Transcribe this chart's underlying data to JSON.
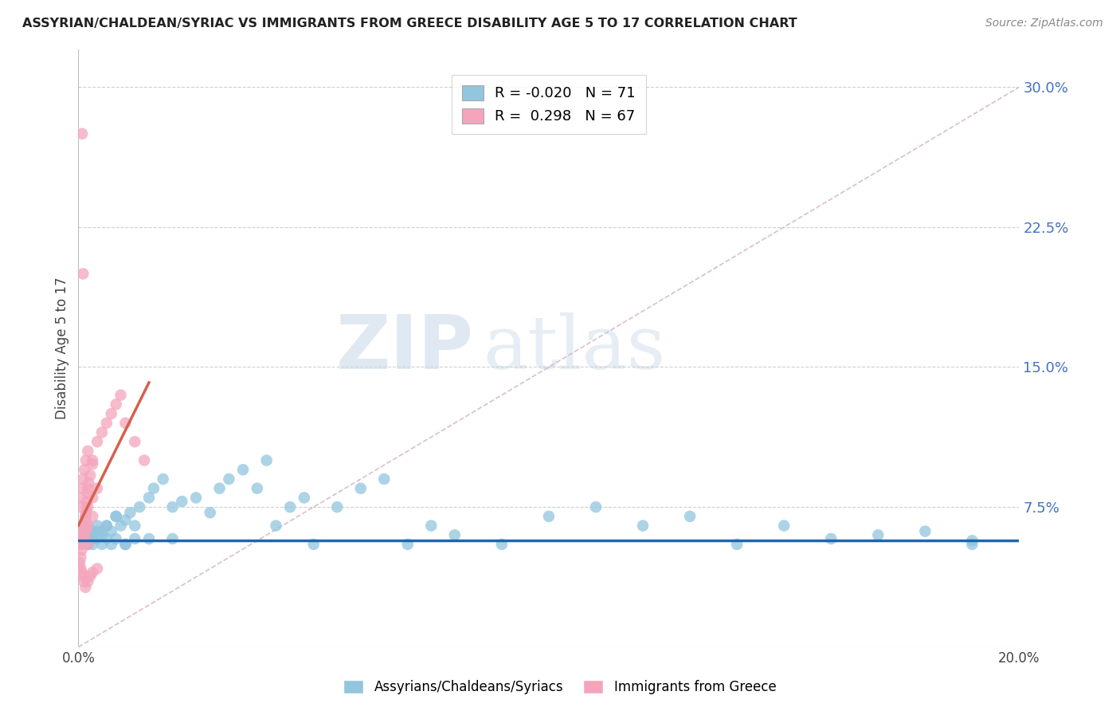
{
  "title": "ASSYRIAN/CHALDEAN/SYRIAC VS IMMIGRANTS FROM GREECE DISABILITY AGE 5 TO 17 CORRELATION CHART",
  "source": "Source: ZipAtlas.com",
  "ylabel_label": "Disability Age 5 to 17",
  "right_yticks": [
    0.075,
    0.15,
    0.225,
    0.3
  ],
  "right_ytick_labels": [
    "7.5%",
    "15.0%",
    "22.5%",
    "30.0%"
  ],
  "xlim": [
    0.0,
    0.2
  ],
  "ylim": [
    0.0,
    0.32
  ],
  "legend_blue_R": "-0.020",
  "legend_blue_N": "71",
  "legend_pink_R": "0.298",
  "legend_pink_N": "67",
  "legend_label_blue": "Assyrians/Chaldeans/Syriacs",
  "legend_label_pink": "Immigrants from Greece",
  "blue_color": "#92c5de",
  "pink_color": "#f4a5bb",
  "trend_blue_color": "#2166ac",
  "trend_pink_color": "#d6604d",
  "diag_color": "#d4b8c8",
  "watermark_zip": "ZIP",
  "watermark_atlas": "atlas",
  "blue_x": [
    0.0005,
    0.001,
    0.001,
    0.0015,
    0.002,
    0.002,
    0.0025,
    0.003,
    0.003,
    0.0035,
    0.004,
    0.004,
    0.005,
    0.005,
    0.005,
    0.006,
    0.006,
    0.007,
    0.007,
    0.008,
    0.008,
    0.009,
    0.01,
    0.01,
    0.011,
    0.012,
    0.013,
    0.015,
    0.016,
    0.018,
    0.02,
    0.022,
    0.025,
    0.028,
    0.03,
    0.032,
    0.035,
    0.038,
    0.04,
    0.042,
    0.045,
    0.048,
    0.05,
    0.055,
    0.06,
    0.065,
    0.07,
    0.075,
    0.08,
    0.09,
    0.1,
    0.11,
    0.12,
    0.13,
    0.14,
    0.15,
    0.16,
    0.17,
    0.18,
    0.19,
    0.001,
    0.002,
    0.003,
    0.004,
    0.006,
    0.008,
    0.01,
    0.012,
    0.015,
    0.02,
    0.19
  ],
  "blue_y": [
    0.055,
    0.058,
    0.062,
    0.06,
    0.055,
    0.065,
    0.058,
    0.062,
    0.055,
    0.06,
    0.058,
    0.065,
    0.06,
    0.055,
    0.062,
    0.065,
    0.058,
    0.062,
    0.055,
    0.07,
    0.058,
    0.065,
    0.068,
    0.055,
    0.072,
    0.065,
    0.075,
    0.08,
    0.085,
    0.09,
    0.075,
    0.078,
    0.08,
    0.072,
    0.085,
    0.09,
    0.095,
    0.085,
    0.1,
    0.065,
    0.075,
    0.08,
    0.055,
    0.075,
    0.085,
    0.09,
    0.055,
    0.065,
    0.06,
    0.055,
    0.07,
    0.075,
    0.065,
    0.07,
    0.055,
    0.065,
    0.058,
    0.06,
    0.062,
    0.055,
    0.065,
    0.055,
    0.058,
    0.062,
    0.065,
    0.07,
    0.055,
    0.058,
    0.058,
    0.058,
    0.057
  ],
  "pink_x": [
    0.0002,
    0.0003,
    0.0004,
    0.0005,
    0.0005,
    0.0006,
    0.0007,
    0.0008,
    0.0009,
    0.001,
    0.001,
    0.0012,
    0.0013,
    0.0014,
    0.0015,
    0.0016,
    0.0017,
    0.0018,
    0.002,
    0.002,
    0.0022,
    0.0025,
    0.003,
    0.003,
    0.004,
    0.005,
    0.006,
    0.007,
    0.008,
    0.009,
    0.01,
    0.012,
    0.014,
    0.0003,
    0.0005,
    0.0007,
    0.0009,
    0.0012,
    0.0015,
    0.002,
    0.0025,
    0.003,
    0.004,
    0.0005,
    0.0007,
    0.001,
    0.0013,
    0.0016,
    0.002,
    0.003,
    0.0003,
    0.0005,
    0.0007,
    0.001,
    0.0013,
    0.0016,
    0.002,
    0.0003,
    0.0005,
    0.001,
    0.0015,
    0.002,
    0.003,
    0.004,
    0.0008,
    0.001,
    0.002
  ],
  "pink_y": [
    0.055,
    0.055,
    0.056,
    0.057,
    0.055,
    0.056,
    0.055,
    0.057,
    0.056,
    0.058,
    0.06,
    0.062,
    0.065,
    0.068,
    0.07,
    0.072,
    0.075,
    0.078,
    0.082,
    0.085,
    0.088,
    0.092,
    0.1,
    0.098,
    0.11,
    0.115,
    0.12,
    0.125,
    0.13,
    0.135,
    0.12,
    0.11,
    0.1,
    0.045,
    0.042,
    0.04,
    0.038,
    0.035,
    0.032,
    0.035,
    0.038,
    0.04,
    0.042,
    0.048,
    0.052,
    0.055,
    0.058,
    0.062,
    0.065,
    0.07,
    0.075,
    0.08,
    0.085,
    0.09,
    0.095,
    0.1,
    0.105,
    0.055,
    0.06,
    0.065,
    0.07,
    0.075,
    0.08,
    0.085,
    0.275,
    0.2,
    0.055
  ]
}
